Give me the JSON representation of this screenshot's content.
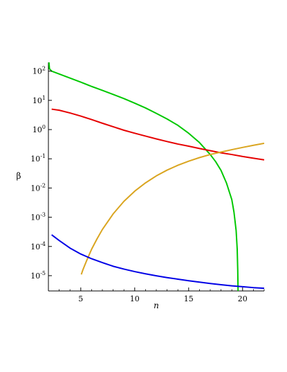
{
  "chart_data": {
    "type": "line",
    "title": "",
    "xlabel": "n",
    "ylabel": "β",
    "xlim": [
      2,
      22
    ],
    "ylim": [
      3e-06,
      200
    ],
    "y_scale": "log",
    "grid": false,
    "legend": "none",
    "x_ticks": [
      5,
      10,
      15,
      20
    ],
    "x_tick_labels": [
      "5",
      "10",
      "15",
      "20"
    ],
    "y_ticks": [
      {
        "value": 100.0,
        "base": "10",
        "exp": "2"
      },
      {
        "value": 10.0,
        "base": "10",
        "exp": "1"
      },
      {
        "value": 1.0,
        "base": "10",
        "exp": "0"
      },
      {
        "value": 0.1,
        "base": "10",
        "exp": "-1"
      },
      {
        "value": 0.01,
        "base": "10",
        "exp": "-2"
      },
      {
        "value": 0.001,
        "base": "10",
        "exp": "-3"
      },
      {
        "value": 0.0001,
        "base": "10",
        "exp": "-4"
      },
      {
        "value": 1e-05,
        "base": "10",
        "exp": "-5"
      }
    ],
    "series": [
      {
        "color": "#00c800",
        "points": [
          [
            2.05,
            200
          ],
          [
            2.1,
            120
          ],
          [
            2.3,
            100
          ],
          [
            3,
            80
          ],
          [
            4,
            58
          ],
          [
            5,
            42
          ],
          [
            6,
            30
          ],
          [
            7,
            22
          ],
          [
            8,
            16
          ],
          [
            9,
            11.5
          ],
          [
            10,
            8
          ],
          [
            11,
            5.5
          ],
          [
            12,
            3.6
          ],
          [
            13,
            2.3
          ],
          [
            14,
            1.4
          ],
          [
            15,
            0.75
          ],
          [
            16,
            0.36
          ],
          [
            17,
            0.14
          ],
          [
            17.5,
            0.08
          ],
          [
            18,
            0.04
          ],
          [
            18.5,
            0.015
          ],
          [
            19,
            0.004
          ],
          [
            19.2,
            0.0015
          ],
          [
            19.4,
            0.00035
          ],
          [
            19.5,
            8e-05
          ],
          [
            19.55,
            1.5e-05
          ],
          [
            19.58,
            3e-06
          ]
        ]
      },
      {
        "color": "#e60000",
        "points": [
          [
            2.3,
            5
          ],
          [
            3,
            4.6
          ],
          [
            4,
            3.7
          ],
          [
            5,
            2.9
          ],
          [
            6,
            2.2
          ],
          [
            7,
            1.65
          ],
          [
            8,
            1.25
          ],
          [
            9,
            0.95
          ],
          [
            10,
            0.75
          ],
          [
            11,
            0.6
          ],
          [
            12,
            0.48
          ],
          [
            13,
            0.39
          ],
          [
            14,
            0.32
          ],
          [
            15,
            0.27
          ],
          [
            16,
            0.225
          ],
          [
            17,
            0.19
          ],
          [
            18,
            0.16
          ],
          [
            19,
            0.14
          ],
          [
            20,
            0.12
          ],
          [
            21,
            0.105
          ],
          [
            22,
            0.092
          ]
        ]
      },
      {
        "color": "#daa520",
        "points": [
          [
            5.05,
            1.1e-05
          ],
          [
            5.2,
            1.6e-05
          ],
          [
            5.5,
            3e-05
          ],
          [
            6,
            8e-05
          ],
          [
            6.5,
            0.00018
          ],
          [
            7,
            0.00038
          ],
          [
            8,
            0.0013
          ],
          [
            9,
            0.0035
          ],
          [
            10,
            0.0078
          ],
          [
            11,
            0.015
          ],
          [
            12,
            0.026
          ],
          [
            13,
            0.041
          ],
          [
            14,
            0.06
          ],
          [
            15,
            0.083
          ],
          [
            16,
            0.11
          ],
          [
            17,
            0.14
          ],
          [
            18,
            0.17
          ],
          [
            19,
            0.205
          ],
          [
            20,
            0.245
          ],
          [
            21,
            0.29
          ],
          [
            22,
            0.34
          ]
        ]
      },
      {
        "color": "#0000e6",
        "points": [
          [
            2.3,
            0.00025
          ],
          [
            3,
            0.00016
          ],
          [
            4,
            8.8e-05
          ],
          [
            5,
            5.5e-05
          ],
          [
            6,
            3.8e-05
          ],
          [
            7,
            2.8e-05
          ],
          [
            8,
            2.1e-05
          ],
          [
            9,
            1.68e-05
          ],
          [
            10,
            1.38e-05
          ],
          [
            11,
            1.16e-05
          ],
          [
            12,
            9.9e-06
          ],
          [
            13,
            8.6e-06
          ],
          [
            14,
            7.6e-06
          ],
          [
            15,
            6.7e-06
          ],
          [
            16,
            6e-06
          ],
          [
            17,
            5.4e-06
          ],
          [
            18,
            4.9e-06
          ],
          [
            19,
            4.5e-06
          ],
          [
            20,
            4.2e-06
          ],
          [
            21,
            3.9e-06
          ],
          [
            22,
            3.7e-06
          ]
        ]
      }
    ]
  }
}
